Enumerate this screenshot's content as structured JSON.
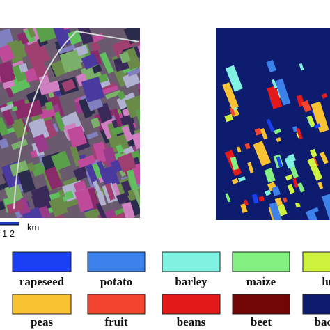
{
  "scale_bar": {
    "ticks": "1 2",
    "unit": "km"
  },
  "legend": [
    {
      "label": "rapeseed",
      "color": "#1b3ff2"
    },
    {
      "label": "potato",
      "color": "#3c82ea"
    },
    {
      "label": "barley",
      "color": "#80f2e2"
    },
    {
      "label": "maize",
      "color": "#84f082"
    },
    {
      "label": "luce",
      "color": "#cff23e"
    },
    {
      "label": "peas",
      "color": "#f8c232"
    },
    {
      "label": "fruit",
      "color": "#f2452e"
    },
    {
      "label": "beans",
      "color": "#e41a1a"
    },
    {
      "label": "beet",
      "color": "#720606"
    },
    {
      "label": "backgr",
      "color": "#0d1c6e"
    }
  ]
}
